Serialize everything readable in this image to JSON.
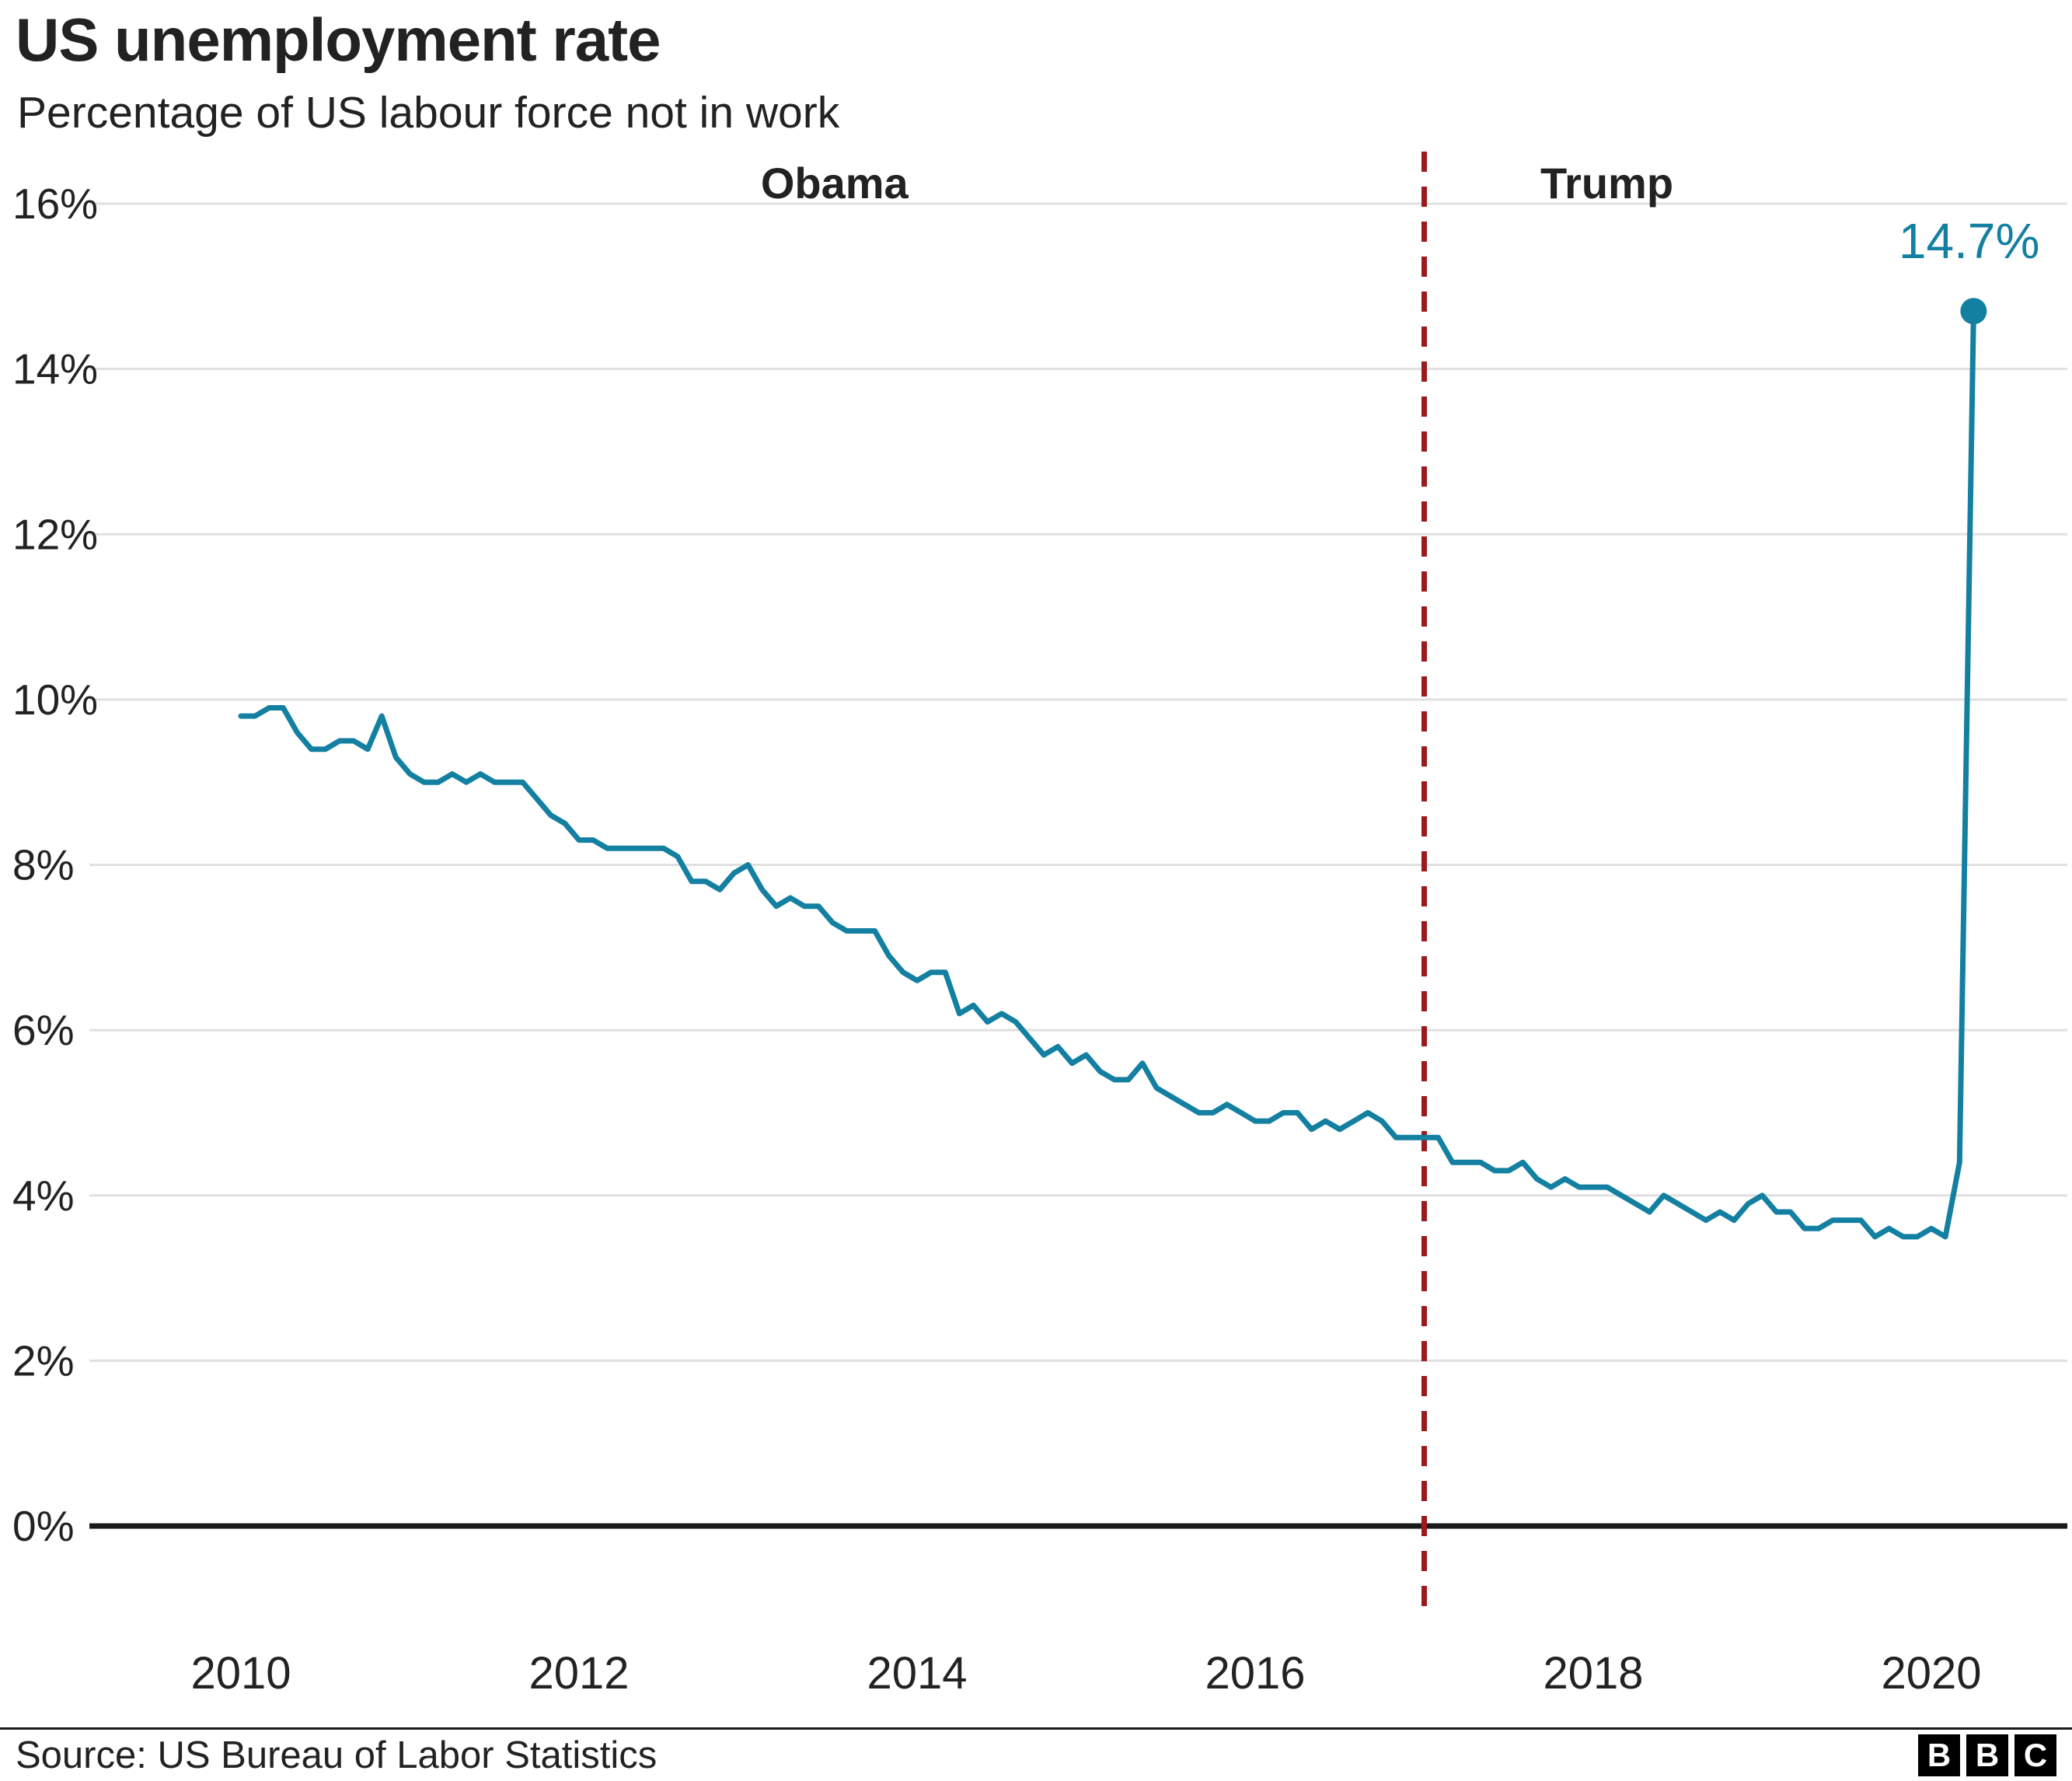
{
  "header": {
    "title": "US unemployment rate",
    "subtitle": "Percentage of US labour force not in work"
  },
  "footer": {
    "source": "Source: US Bureau of Labor Statistics",
    "logo_letters": [
      "B",
      "B",
      "C"
    ]
  },
  "chart_data": {
    "type": "line",
    "title": "US unemployment rate",
    "subtitle": "Percentage of US labour force not in work",
    "xlabel": "",
    "ylabel": "",
    "unit": "%",
    "frequency": "monthly",
    "x_start": {
      "year": 2010,
      "month": 1
    },
    "x_end": {
      "year": 2020,
      "month": 4
    },
    "values": [
      9.8,
      9.8,
      9.9,
      9.9,
      9.6,
      9.4,
      9.4,
      9.5,
      9.5,
      9.4,
      9.8,
      9.3,
      9.1,
      9.0,
      9.0,
      9.1,
      9.0,
      9.1,
      9.0,
      9.0,
      9.0,
      8.8,
      8.6,
      8.5,
      8.3,
      8.3,
      8.2,
      8.2,
      8.2,
      8.2,
      8.2,
      8.1,
      7.8,
      7.8,
      7.7,
      7.9,
      8.0,
      7.7,
      7.5,
      7.6,
      7.5,
      7.5,
      7.3,
      7.2,
      7.2,
      7.2,
      6.9,
      6.7,
      6.6,
      6.7,
      6.7,
      6.2,
      6.3,
      6.1,
      6.2,
      6.1,
      5.9,
      5.7,
      5.8,
      5.6,
      5.7,
      5.5,
      5.4,
      5.4,
      5.6,
      5.3,
      5.2,
      5.1,
      5.0,
      5.0,
      5.1,
      5.0,
      4.9,
      4.9,
      5.0,
      5.0,
      4.8,
      4.9,
      4.8,
      4.9,
      5.0,
      4.9,
      4.7,
      4.7,
      4.7,
      4.7,
      4.4,
      4.4,
      4.4,
      4.3,
      4.3,
      4.4,
      4.2,
      4.1,
      4.2,
      4.1,
      4.1,
      4.1,
      4.0,
      3.9,
      3.8,
      4.0,
      3.9,
      3.8,
      3.7,
      3.8,
      3.7,
      3.9,
      4.0,
      3.8,
      3.8,
      3.6,
      3.6,
      3.7,
      3.7,
      3.7,
      3.5,
      3.6,
      3.5,
      3.5,
      3.6,
      3.5,
      4.4,
      14.7
    ],
    "ylim": [
      0,
      16
    ],
    "ytick_step": 2,
    "ytick_labels": [
      "0%",
      "2%",
      "4%",
      "6%",
      "8%",
      "10%",
      "12%",
      "14%",
      "16%"
    ],
    "xticks": [
      2010,
      2012,
      2014,
      2016,
      2018,
      2020
    ],
    "grid": true,
    "annotations": {
      "obama_label": "Obama",
      "trump_label": "Trump",
      "divider_year": 2017,
      "last_point_label": "14.7%",
      "last_point_value": 14.7
    },
    "colors": {
      "line": "#1380A1",
      "divider": "#991b1e",
      "grid": "#e0e0e0",
      "axis": "#1a1a1a",
      "text": "#222222"
    }
  }
}
